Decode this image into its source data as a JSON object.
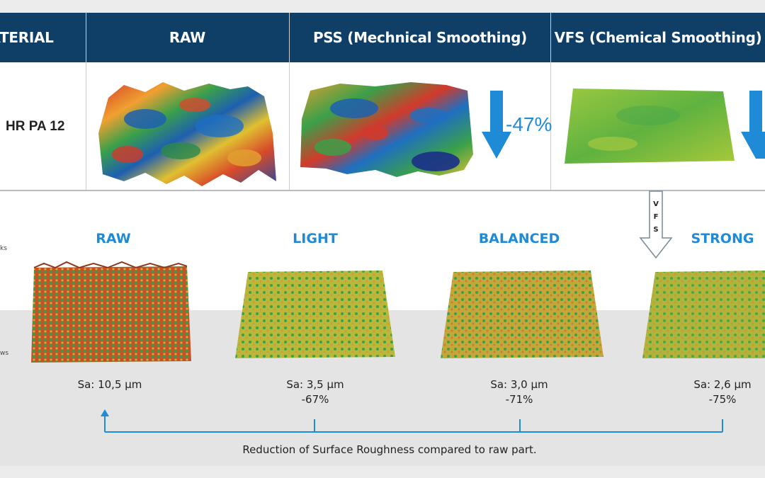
{
  "header": {
    "col_material": "ATERIAL",
    "col_raw": "RAW",
    "col_pss": "PSS (Mechnical Smoothing)",
    "col_vfs": "VFS (Chemical Smoothing)"
  },
  "row": {
    "material": "HR PA 12",
    "pss_reduction": "-47%"
  },
  "vfs_label": "V\nF\nS",
  "side_labels": {
    "peaks": "ks",
    "valleys": "ws"
  },
  "levels": [
    {
      "label": "RAW",
      "sa": "Sa: 10,5 µm",
      "reduction": ""
    },
    {
      "label": "LIGHT",
      "sa": "Sa: 3,5 µm",
      "reduction": "-67%"
    },
    {
      "label": "BALANCED",
      "sa": "Sa: 3,0 µm",
      "reduction": "-71%"
    },
    {
      "label": "STRONG",
      "sa": "Sa: 2,6 µm",
      "reduction": "-75%"
    }
  ],
  "caption": "Reduction of Surface Roughness compared to raw part.",
  "colors": {
    "header": "#0f3f66",
    "accent": "#1f8ad6",
    "divider": "#b8bcc1"
  }
}
